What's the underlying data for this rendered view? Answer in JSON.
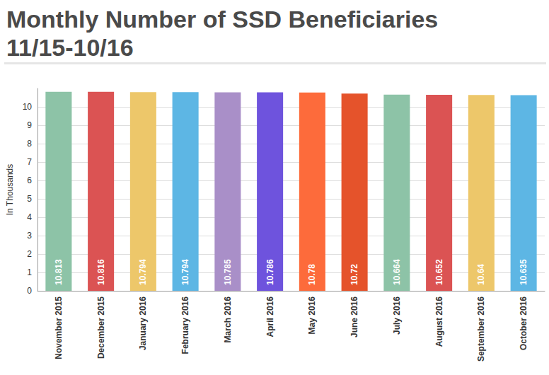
{
  "chart_data": {
    "type": "bar",
    "title": "Monthly Number of SSD Beneficiaries\n11/15-10/16",
    "ylabel": "In Thousands",
    "categories": [
      "November 2015",
      "December 2015",
      "January 2016",
      "February 2016",
      "March 2016",
      "April 2016",
      "May 2016",
      "June 2016",
      "July 2016",
      "August 2016",
      "September 2016",
      "October 2016"
    ],
    "values": [
      10.813,
      10.816,
      10.794,
      10.794,
      10.785,
      10.786,
      10.78,
      10.72,
      10.664,
      10.652,
      10.64,
      10.635
    ],
    "colors": [
      "#8dc3a7",
      "#db5353",
      "#edc76a",
      "#5db6e4",
      "#a98fc8",
      "#6e53dd",
      "#fd6b3b",
      "#e5532b",
      "#8dc3a7",
      "#db5353",
      "#edc76a",
      "#5db6e4"
    ],
    "ylim": [
      0,
      11
    ],
    "yticks": [
      0,
      1,
      2,
      3,
      4,
      5,
      6,
      7,
      8,
      9,
      10
    ],
    "grid": true,
    "data_labels": true
  }
}
